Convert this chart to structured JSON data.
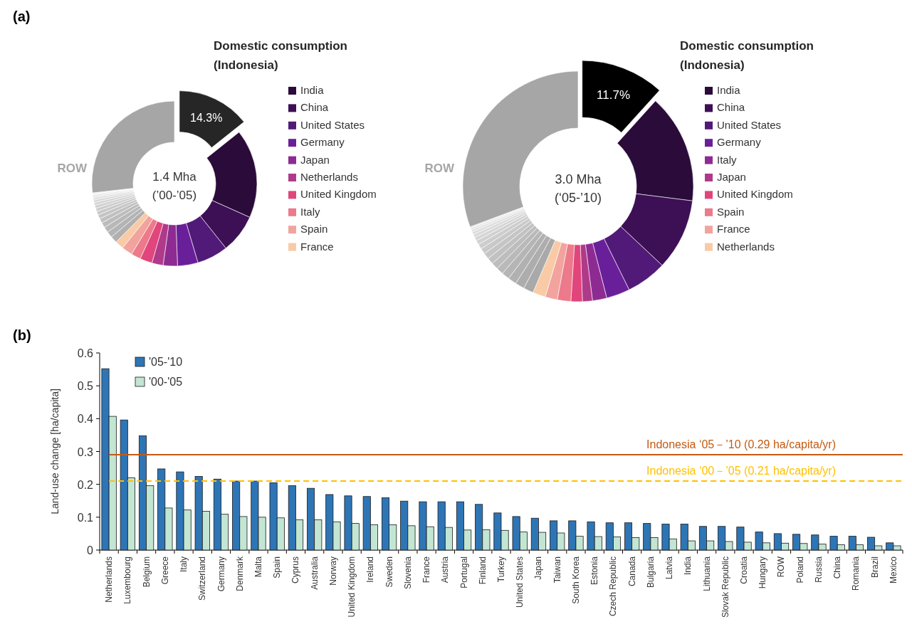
{
  "chart_data": [
    {
      "type": "donut",
      "annotations": [
        "(a)",
        "1.4 Mha (’00-’05)"
      ],
      "legend": "right",
      "categories": [
        "Domestic consumption (Indonesia)",
        "India",
        "China",
        "United States",
        "Germany",
        "Japan",
        "Netherlands",
        "United Kingdom",
        "Italy",
        "Spain",
        "France",
        null,
        null,
        null,
        null,
        null,
        null,
        null,
        null,
        null,
        null,
        null,
        null,
        null,
        null,
        null,
        null,
        "ROW"
      ],
      "values": [
        14.3,
        17.4,
        7.6,
        6.1,
        4.0,
        2.8,
        2.2,
        2.4,
        1.9,
        2.1,
        1.7,
        1.3,
        1.2,
        1.1,
        1.0,
        0.9,
        0.8,
        0.7,
        0.65,
        0.6,
        0.55,
        0.5,
        0.4,
        0.3,
        0.3,
        0.2,
        0.2,
        26.8
      ],
      "value_labels": [
        "14.3%",
        null,
        null,
        null,
        null,
        null,
        null,
        null,
        null,
        null,
        null,
        null,
        null,
        null,
        null,
        null,
        null,
        null,
        null,
        null,
        null,
        null,
        null,
        null,
        null,
        null,
        null,
        null
      ],
      "colors": [
        "#262626",
        "#2a0b3a",
        "#3d1056",
        "#521a78",
        "#6a1f9a",
        "#8e2b92",
        "#b03a8a",
        "#e0457b",
        "#ec7a8a",
        "#f2a39e",
        "#f8cba6",
        "#b0b0b0",
        "#b4b4b4",
        "#b8b8b8",
        "#bcbcbc",
        "#c0c0c0",
        "#c4c4c4",
        "#c8c8c8",
        "#cccccc",
        "#d0d0d0",
        "#d4d4d4",
        "#d8d8d8",
        "#dcdcdc",
        "#e0e0e0",
        "#e4e4e4",
        "#e8e8e8",
        "#ececec",
        "#a6a6a6"
      ]
    },
    {
      "type": "donut",
      "annotations": [
        "3.0 Mha (‘05-’10)"
      ],
      "legend": "right",
      "categories": [
        "Domestic consumption (Indonesia)",
        "India",
        "China",
        "United States",
        "Germany",
        "Italy",
        "Japan",
        "United Kingdom",
        "Spain",
        "France",
        "Netherlands",
        null,
        null,
        null,
        null,
        null,
        null,
        null,
        null,
        null,
        null,
        null,
        null,
        null,
        null,
        null,
        null,
        null,
        "ROW"
      ],
      "values": [
        11.7,
        15.3,
        10.0,
        5.7,
        3.3,
        2.0,
        1.4,
        1.6,
        1.9,
        1.7,
        1.8,
        1.4,
        1.3,
        1.2,
        1.1,
        1.0,
        0.95,
        0.9,
        0.85,
        0.8,
        0.7,
        0.6,
        0.5,
        0.45,
        0.4,
        0.3,
        0.25,
        0.2,
        30.7
      ],
      "value_labels": [
        "11.7%",
        null,
        null,
        null,
        null,
        null,
        null,
        null,
        null,
        null,
        null,
        null,
        null,
        null,
        null,
        null,
        null,
        null,
        null,
        null,
        null,
        null,
        null,
        null,
        null,
        null,
        null,
        null,
        null
      ],
      "colors": [
        "#000000",
        "#2a0b3a",
        "#3d1056",
        "#521a78",
        "#6a1f9a",
        "#8e2b92",
        "#b03a8a",
        "#e0457b",
        "#ec7a8a",
        "#f2a39e",
        "#f8cba6",
        "#a9a9a9",
        "#adadad",
        "#b1b1b1",
        "#b5b5b5",
        "#b9b9b9",
        "#bdbdbd",
        "#c1c1c1",
        "#c5c5c5",
        "#c9c9c9",
        "#cdcdcd",
        "#d1d1d1",
        "#d5d5d5",
        "#d9d9d9",
        "#dddddd",
        "#e1e1e1",
        "#e5e5e5",
        "#e9e9e9",
        "#a6a6a6"
      ]
    },
    {
      "type": "bar",
      "annotations": [
        "(b)"
      ],
      "ylabel": "Land-use change [ha/capita]",
      "ylim": [
        0,
        0.6
      ],
      "yticks": [
        0,
        0.1,
        0.2,
        0.3,
        0.4,
        0.5,
        0.6
      ],
      "legend": "top left",
      "categories": [
        "Netherlands",
        "Luxembourg",
        "Belgium",
        "Greece",
        "Italy",
        "Switzerland",
        "Germany",
        "Denmark",
        "Malta",
        "Spain",
        "Cyprus",
        "Australia",
        "Norway",
        "United Kingdom",
        "Ireland",
        "Sweden",
        "Slovenia",
        "France",
        "Austria",
        "Portugal",
        "Finland",
        "Turkey",
        "United States",
        "Japan",
        "Taiwan",
        "South Korea",
        "Estonia",
        "Czech Republic",
        "Canada",
        "Bulgaria",
        "Latvia",
        "India",
        "Lithuania",
        "Slovak Republic",
        "Croatia",
        "Hungary",
        "ROW",
        "Poland",
        "Russia",
        "China",
        "Romania",
        "Brazil",
        "Mexico"
      ],
      "series": [
        {
          "name": "'05-'10",
          "color": "#2e75b6",
          "values": [
            0.552,
            0.396,
            0.348,
            0.247,
            0.238,
            0.224,
            0.216,
            0.21,
            0.21,
            0.205,
            0.196,
            0.188,
            0.169,
            0.165,
            0.163,
            0.159,
            0.149,
            0.147,
            0.147,
            0.147,
            0.139,
            0.113,
            0.102,
            0.097,
            0.089,
            0.089,
            0.086,
            0.083,
            0.083,
            0.081,
            0.079,
            0.079,
            0.072,
            0.072,
            0.07,
            0.055,
            0.05,
            0.048,
            0.046,
            0.042,
            0.042,
            0.039,
            0.022
          ]
        },
        {
          "name": "'00-'05",
          "color": "#c2e6d3",
          "values": [
            0.407,
            0.22,
            0.196,
            0.128,
            0.122,
            0.118,
            0.109,
            0.102,
            0.1,
            0.098,
            0.092,
            0.092,
            0.086,
            0.081,
            0.077,
            0.077,
            0.074,
            0.071,
            0.069,
            0.061,
            0.062,
            0.06,
            0.055,
            0.054,
            0.052,
            0.042,
            0.041,
            0.04,
            0.038,
            0.038,
            0.034,
            0.028,
            0.028,
            0.026,
            0.024,
            0.022,
            0.021,
            0.02,
            0.018,
            0.016,
            0.016,
            0.013,
            0.013
          ]
        }
      ],
      "ref_lines": [
        {
          "axis": "y",
          "value": 0.29,
          "label": "Indonesia ‘05－’10 (0.29 ha/capita/yr)",
          "color": "#c55a11",
          "line_style": "solid"
        },
        {
          "axis": "y",
          "value": 0.21,
          "label": "Indonesia ‘00－’05 (0.21 ha/capita/yr)",
          "color": "#ffc000",
          "line_style": "dashed"
        }
      ]
    }
  ]
}
